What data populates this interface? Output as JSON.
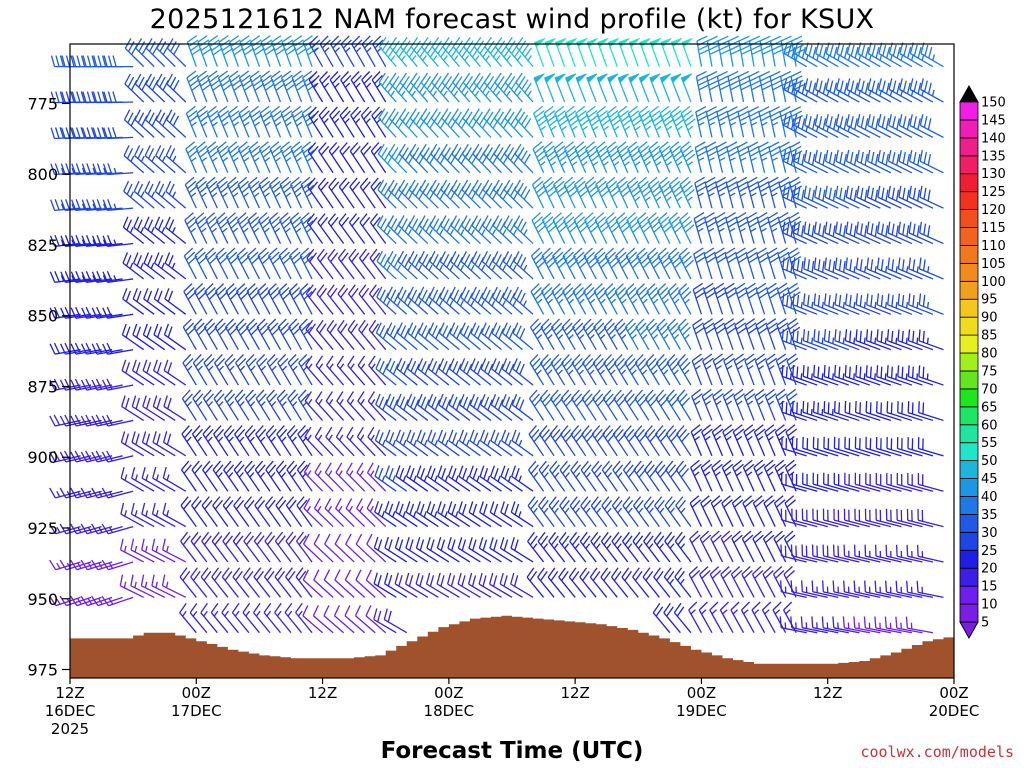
{
  "chart_data": {
    "type": "wind-barb-profile",
    "title": "2025121612 NAM forecast wind profile (kt) for KSUX",
    "xlabel": "Forecast Time (UTC)",
    "ylabel": "",
    "credit": "coolwx.com/models",
    "x_range_hours": [
      0,
      84
    ],
    "y_range_hpa": [
      754,
      978
    ],
    "y_ticks": [
      775,
      800,
      825,
      850,
      875,
      900,
      925,
      950,
      975
    ],
    "x_ticks": [
      {
        "hour": 0,
        "line1": "12Z",
        "line2": "16DEC",
        "line3": "2025"
      },
      {
        "hour": 12,
        "line1": "00Z",
        "line2": "17DEC",
        "line3": ""
      },
      {
        "hour": 24,
        "line1": "12Z",
        "line2": "",
        "line3": ""
      },
      {
        "hour": 36,
        "line1": "00Z",
        "line2": "18DEC",
        "line3": ""
      },
      {
        "hour": 48,
        "line1": "12Z",
        "line2": "",
        "line3": ""
      },
      {
        "hour": 60,
        "line1": "00Z",
        "line2": "19DEC",
        "line3": ""
      },
      {
        "hour": 72,
        "line1": "12Z",
        "line2": "",
        "line3": ""
      },
      {
        "hour": 84,
        "line1": "00Z",
        "line2": "20DEC",
        "line3": ""
      }
    ],
    "colorbar": {
      "levels": [
        5,
        10,
        15,
        20,
        25,
        30,
        35,
        40,
        45,
        50,
        55,
        60,
        65,
        70,
        75,
        80,
        85,
        90,
        95,
        100,
        105,
        110,
        115,
        120,
        125,
        130,
        135,
        140,
        145,
        150
      ],
      "colors": [
        "#7a1ee6",
        "#6e1ef0",
        "#3c1ee6",
        "#1e1ee6",
        "#1e46e6",
        "#1e5ae6",
        "#1e78e6",
        "#1e96e6",
        "#1eb4dc",
        "#1ee6c8",
        "#1ee6a0",
        "#1ee664",
        "#1ee61e",
        "#64e61e",
        "#a0f01e",
        "#e6f01e",
        "#f0dc1e",
        "#f0c81e",
        "#f0a01e",
        "#f08c1e",
        "#f0781e",
        "#f0641e",
        "#f0501e",
        "#f0321e",
        "#f01e32",
        "#f01e64",
        "#f01e8c",
        "#f01eb4",
        "#f01ee6"
      ],
      "max_arrow_color": "#000000",
      "min_arrow_color": "#7a1ee6"
    },
    "terrain_surface_hpa": [
      {
        "hour": 0,
        "hpa": 964
      },
      {
        "hour": 5,
        "hpa": 964
      },
      {
        "hour": 7,
        "hpa": 962
      },
      {
        "hour": 9,
        "hpa": 962
      },
      {
        "hour": 11,
        "hpa": 964
      },
      {
        "hour": 13,
        "hpa": 966
      },
      {
        "hour": 15,
        "hpa": 968
      },
      {
        "hour": 18,
        "hpa": 970
      },
      {
        "hour": 21,
        "hpa": 971
      },
      {
        "hour": 26,
        "hpa": 971
      },
      {
        "hour": 29,
        "hpa": 970
      },
      {
        "hour": 32,
        "hpa": 965
      },
      {
        "hour": 35,
        "hpa": 960
      },
      {
        "hour": 38,
        "hpa": 957
      },
      {
        "hour": 41,
        "hpa": 956
      },
      {
        "hour": 44,
        "hpa": 957
      },
      {
        "hour": 47,
        "hpa": 958
      },
      {
        "hour": 50,
        "hpa": 959
      },
      {
        "hour": 53,
        "hpa": 961
      },
      {
        "hour": 56,
        "hpa": 964
      },
      {
        "hour": 59,
        "hpa": 968
      },
      {
        "hour": 62,
        "hpa": 971
      },
      {
        "hour": 65,
        "hpa": 973
      },
      {
        "hour": 72,
        "hpa": 973
      },
      {
        "hour": 75,
        "hpa": 972
      },
      {
        "hour": 78,
        "hpa": 969
      },
      {
        "hour": 81,
        "hpa": 965
      },
      {
        "hour": 84,
        "hpa": 963
      }
    ],
    "terrain_color": "#a0522d",
    "barb_time_step_hours": 1,
    "barb_pressure_step_hpa": 12.5,
    "wind_regimes": [
      {
        "from_hour": 0,
        "to_hour": 7,
        "direction_deg": 270,
        "speed_kt": 30
      },
      {
        "from_hour": 7,
        "to_hour": 12,
        "direction_deg": 315,
        "speed_kt": 30
      },
      {
        "from_hour": 12,
        "to_hour": 24,
        "direction_deg": 340,
        "speed_kt": 40
      },
      {
        "from_hour": 24,
        "to_hour": 31,
        "direction_deg": 330,
        "speed_kt": 25
      },
      {
        "from_hour": 31,
        "to_hour": 45,
        "direction_deg": 320,
        "speed_kt": 45
      },
      {
        "from_hour": 45,
        "to_hour": 60,
        "direction_deg": 340,
        "speed_kt": 50
      },
      {
        "from_hour": 60,
        "to_hour": 70,
        "direction_deg": 350,
        "speed_kt": 40
      },
      {
        "from_hour": 70,
        "to_hour": 84,
        "direction_deg": 300,
        "speed_kt": 35
      }
    ],
    "grid": false,
    "legend": "right"
  }
}
